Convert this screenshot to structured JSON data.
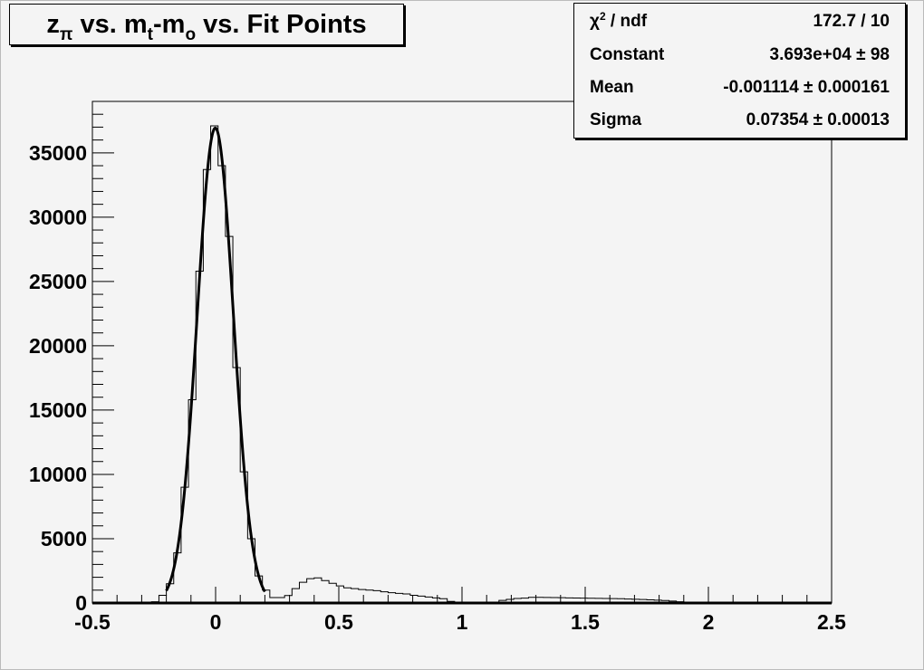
{
  "chart_data": {
    "type": "bar",
    "title_parts": [
      {
        "text": "z",
        "sub": "π"
      },
      {
        "text": " vs. m",
        "sub": "t"
      },
      {
        "text": "-m",
        "sub": "o"
      },
      {
        "text": " vs. Fit Points",
        "sub": ""
      }
    ],
    "xlim": [
      -0.5,
      2.5
    ],
    "ylim": [
      0,
      39000
    ],
    "x_ticks": [
      -0.5,
      0,
      0.5,
      1,
      1.5,
      2,
      2.5
    ],
    "x_tick_labels": [
      "-0.5",
      "0",
      "0.5",
      "1",
      "1.5",
      "2",
      "2.5"
    ],
    "y_ticks": [
      0,
      5000,
      10000,
      15000,
      20000,
      25000,
      30000,
      35000
    ],
    "y_tick_labels": [
      "0",
      "5000",
      "10000",
      "15000",
      "20000",
      "25000",
      "30000",
      "35000"
    ],
    "grid": false,
    "histogram": {
      "bin_low": -0.5,
      "bin_width": 0.03,
      "values": [
        0,
        0,
        0,
        0,
        0,
        0,
        0,
        0,
        100,
        600,
        1500,
        3900,
        9000,
        15800,
        25800,
        33700,
        37100,
        34000,
        28500,
        18300,
        10200,
        5000,
        2100,
        1000,
        420,
        420,
        580,
        1120,
        1610,
        1890,
        1950,
        1740,
        1530,
        1330,
        1180,
        1120,
        1050,
        1000,
        960,
        870,
        800,
        750,
        700,
        600,
        540,
        470,
        400,
        330,
        120,
        30,
        0,
        0,
        0,
        0,
        50,
        200,
        280,
        350,
        380,
        440,
        440,
        430,
        420,
        410,
        400,
        390,
        380,
        370,
        360,
        350,
        340,
        330,
        310,
        290,
        270,
        250,
        220,
        190,
        150,
        100,
        60,
        30,
        0,
        0,
        0,
        0,
        0,
        0,
        0,
        0,
        0,
        0,
        0,
        0,
        0,
        0,
        0,
        0,
        0,
        0
      ]
    },
    "fit": {
      "function": "gaus",
      "constant": 36930,
      "mean": -0.001114,
      "sigma": 0.07354,
      "range": [
        -0.2,
        0.2
      ]
    },
    "stats_box": {
      "placement": "top-right",
      "rows": [
        {
          "label": "χ",
          "label_sup": "2",
          "label_rest": " / ndf",
          "value": "172.7 / 10"
        },
        {
          "label": "Constant",
          "label_sup": "",
          "label_rest": "",
          "value": "3.693e+04 ± 98"
        },
        {
          "label": "Mean",
          "label_sup": "",
          "label_rest": "",
          "value": "-0.001114 ± 0.000161"
        },
        {
          "label": "Sigma",
          "label_sup": "",
          "label_rest": "",
          "value": "0.07354 ± 0.00013"
        }
      ]
    },
    "colors": {
      "background": "#f4f4f4",
      "line": "#000000"
    }
  }
}
